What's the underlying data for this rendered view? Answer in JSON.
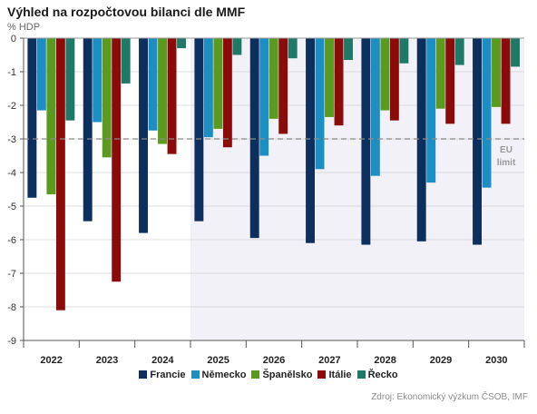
{
  "header": {
    "title": "Výhled na rozpočtovou bilanci dle MMF",
    "unit": "% HDP"
  },
  "footer": {
    "source": "Zdroj: Ekonomický výzkum ČSOB, IMF"
  },
  "chart_data": {
    "type": "bar",
    "categories": [
      "2022",
      "2023",
      "2024",
      "2025",
      "2026",
      "2027",
      "2028",
      "2029",
      "2030"
    ],
    "ylim": [
      -9,
      0
    ],
    "yticks": [
      "0",
      "-1",
      "-2",
      "-3",
      "-4",
      "-5",
      "-6",
      "-7",
      "-8",
      "-9"
    ],
    "grid": true,
    "legend_position": "bottom",
    "forecast_from": "2025",
    "reference_line": {
      "value": -3,
      "label_line1": "EU",
      "label_line2": "limit"
    },
    "series": [
      {
        "name": "Francie",
        "color": "#0d2f5e",
        "values": [
          -4.75,
          -5.45,
          -5.8,
          -5.45,
          -5.95,
          -6.1,
          -6.15,
          -6.05,
          -6.15
        ]
      },
      {
        "name": "Německo",
        "color": "#1d8ec1",
        "values": [
          -2.15,
          -2.5,
          -2.75,
          -2.95,
          -3.5,
          -3.9,
          -4.1,
          -4.3,
          -4.45
        ]
      },
      {
        "name": "Španělsko",
        "color": "#5a9a1e",
        "values": [
          -4.65,
          -3.55,
          -3.15,
          -2.7,
          -2.4,
          -2.35,
          -2.15,
          -2.1,
          -2.05
        ]
      },
      {
        "name": "Itálie",
        "color": "#8b0a0a",
        "values": [
          -8.1,
          -7.25,
          -3.45,
          -3.25,
          -2.85,
          -2.6,
          -2.45,
          -2.55,
          -2.55
        ]
      },
      {
        "name": "Řecko",
        "color": "#1e7a66",
        "values": [
          -2.45,
          -1.35,
          -0.3,
          -0.5,
          -0.6,
          -0.65,
          -0.75,
          -0.8,
          -0.85
        ]
      }
    ]
  }
}
